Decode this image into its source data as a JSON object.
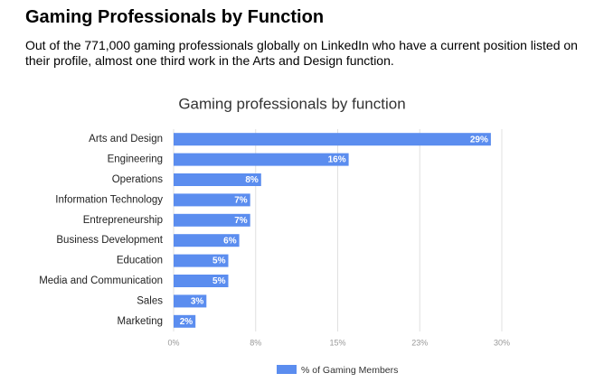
{
  "header": {
    "title": "Gaming Professionals by Function",
    "description": "Out of the 771,000 gaming professionals globally on LinkedIn who have a current position listed on their profile, almost one third work in the Arts and Design function."
  },
  "chart_data": {
    "type": "bar",
    "orientation": "horizontal",
    "title": "Gaming professionals by function",
    "categories": [
      "Arts and Design",
      "Engineering",
      "Operations",
      "Information Technology",
      "Entrepreneurship",
      "Business Development",
      "Education",
      "Media and Communication",
      "Sales",
      "Marketing"
    ],
    "series": [
      {
        "name": "% of Gaming Members",
        "color": "#5b8def",
        "values": [
          29,
          16,
          8,
          7,
          7,
          6,
          5,
          5,
          3,
          2
        ],
        "value_labels": [
          "29%",
          "16%",
          "8%",
          "7%",
          "7%",
          "6%",
          "5%",
          "5%",
          "3%",
          "2%"
        ]
      }
    ],
    "xlim": [
      0,
      30
    ],
    "xticks": [
      {
        "value": 0,
        "label": "0%"
      },
      {
        "value": 7.5,
        "label": "8%"
      },
      {
        "value": 15,
        "label": "15%"
      },
      {
        "value": 22.5,
        "label": "23%"
      },
      {
        "value": 30,
        "label": "30%"
      }
    ],
    "grid": true,
    "legend": "bottom"
  }
}
